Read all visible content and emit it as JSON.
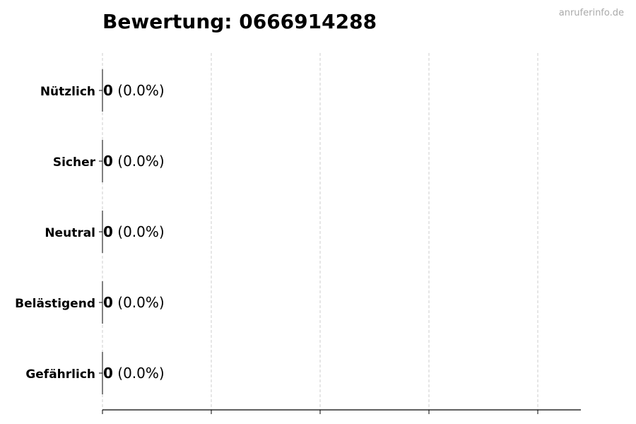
{
  "watermark": "anruferinfo.de",
  "chart_data": {
    "type": "bar",
    "orientation": "horizontal",
    "title": "Bewertung: 0666914288",
    "categories": [
      "Nützlich",
      "Sicher",
      "Neutral",
      "Belästigend",
      "Gefährlich"
    ],
    "values": [
      0,
      0,
      0,
      0,
      0
    ],
    "percent_labels": [
      "(0.0%)",
      "(0.0%)",
      "(0.0%)",
      "(0.0%)",
      "(0.0%)"
    ],
    "xlabel": "",
    "ylabel": "",
    "grid": "vertical dashed",
    "colors": {
      "bar_edge": "#000000",
      "grid": "#cccccc",
      "watermark": "#aaaaaa"
    }
  }
}
